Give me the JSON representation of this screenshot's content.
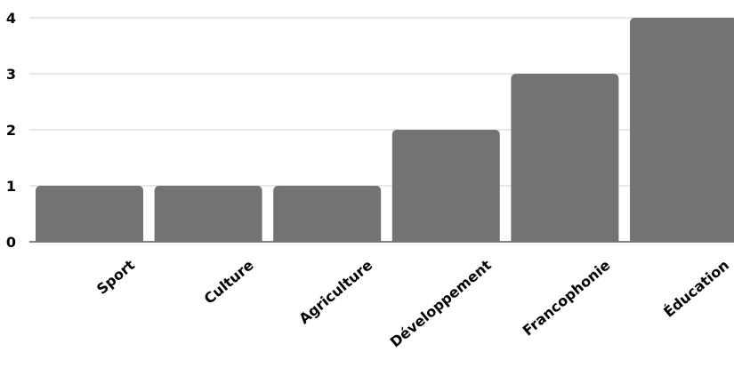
{
  "chart_data": {
    "type": "bar",
    "categories": [
      "Sport",
      "Culture",
      "Agriculture",
      "Développement",
      "Francophonie",
      "Éducation"
    ],
    "values": [
      1,
      1,
      1,
      2,
      3,
      4
    ],
    "title": "",
    "xlabel": "",
    "ylabel": "",
    "ylim": [
      0,
      4
    ],
    "yticks": [
      "0",
      "1",
      "2",
      "3",
      "4"
    ],
    "grid": true,
    "legend": "none",
    "bar_color": "#737373"
  }
}
